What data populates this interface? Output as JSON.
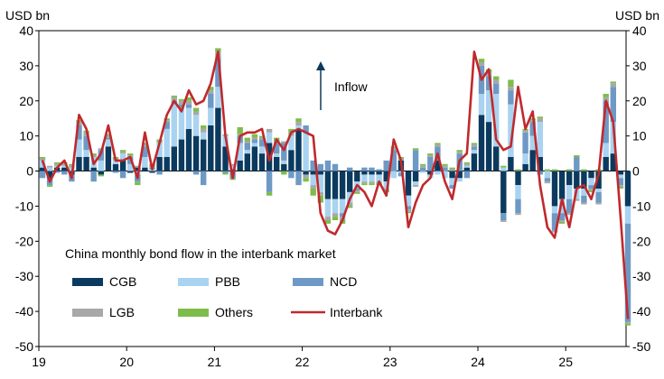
{
  "chart_data": {
    "type": "bar",
    "y_unit_left": "USD bn",
    "y_unit_right": "USD bn",
    "ylim": [
      -50,
      40
    ],
    "y_ticks": [
      40,
      30,
      20,
      10,
      0,
      -10,
      -20,
      -30,
      -40,
      -50
    ],
    "x_ticks": [
      "19",
      "20",
      "21",
      "22",
      "23",
      "24",
      "25"
    ],
    "legend_title": "China monthly bond flow in the interbank market",
    "annotation": "Inflow",
    "legend": [
      {
        "name": "CGB",
        "color": "#0b3a5e",
        "kind": "bar"
      },
      {
        "name": "PBB",
        "color": "#a9d3f0",
        "kind": "bar"
      },
      {
        "name": "NCD",
        "color": "#6f99c5",
        "kind": "bar"
      },
      {
        "name": "LGB",
        "color": "#a8a8a8",
        "kind": "bar"
      },
      {
        "name": "Others",
        "color": "#7ebd4c",
        "kind": "bar"
      },
      {
        "name": "Interbank",
        "color": "#c0292c",
        "kind": "line"
      }
    ],
    "months_per_year": 12,
    "start_year": 2019,
    "series": [
      {
        "name": "CGB",
        "values": [
          1,
          -2,
          1,
          1,
          -1,
          4,
          4,
          1,
          -1,
          7,
          2,
          3,
          -0.5,
          1,
          1,
          -0.5,
          4,
          4,
          7,
          9,
          12,
          10,
          9,
          13,
          18,
          7,
          0.5,
          3,
          5,
          7,
          5,
          8,
          4,
          2,
          6,
          12,
          -1,
          -1,
          -1,
          -8,
          -8,
          -8,
          -6,
          -3,
          -1,
          -1,
          -1,
          -3,
          0,
          3,
          -7,
          -3,
          0,
          -1,
          3,
          0,
          -2,
          -2,
          1,
          5,
          16,
          14,
          7,
          -12,
          4,
          -4,
          2,
          6,
          4,
          0,
          -10,
          -8,
          -4,
          -5,
          -5,
          -2,
          -5,
          4,
          5,
          -1,
          -10
        ]
      },
      {
        "name": "PBB",
        "values": [
          2,
          1,
          0.5,
          0.5,
          1,
          5,
          2,
          3,
          3,
          2,
          1,
          2,
          2,
          -1,
          3,
          0.5,
          4,
          8,
          12,
          9,
          6,
          6,
          2,
          5,
          6,
          3,
          1,
          5,
          1,
          1,
          2,
          3,
          1,
          1,
          4,
          1,
          11,
          -3,
          -5,
          -5,
          -4,
          -4,
          -3,
          -2,
          -2,
          -2,
          -2,
          -2,
          -2,
          -0.5,
          -3,
          -1,
          -0.5,
          -1,
          -1,
          -2,
          -2,
          -1,
          0.5,
          1,
          6,
          9,
          15,
          1,
          15,
          -4,
          3,
          4,
          10,
          -2,
          -2,
          -4,
          -4,
          -3,
          -2,
          -2,
          -1,
          4,
          9,
          -1,
          -5
        ]
      },
      {
        "name": "NCD",
        "values": [
          -2,
          -2,
          -0.5,
          -1,
          -2,
          4,
          4,
          -3,
          3,
          0.5,
          -0.5,
          -2,
          2,
          -2,
          3,
          0.5,
          -1,
          2,
          1,
          1,
          1,
          -1,
          -4,
          4,
          8,
          -0.5,
          -2,
          2,
          2,
          1,
          2,
          -6,
          3,
          5,
          -2,
          -4,
          2,
          3,
          2,
          3,
          2,
          -1,
          1,
          -0.5,
          1,
          1,
          0.5,
          3,
          6,
          -1,
          -1,
          6,
          1,
          4,
          4,
          1,
          -1,
          5,
          -2,
          1,
          8,
          4,
          3,
          -2,
          4,
          -4,
          6,
          4,
          -1,
          -1,
          -5,
          -2,
          -4,
          4,
          -2,
          -1,
          -3,
          12,
          10,
          -2,
          -28
        ]
      },
      {
        "name": "LGB",
        "values": [
          0.5,
          0.5,
          0.5,
          0.5,
          0.5,
          1,
          1,
          0.5,
          0.5,
          0.5,
          0.5,
          0.5,
          0.5,
          0.5,
          0.5,
          0.5,
          0.5,
          0.5,
          1,
          1,
          1,
          1,
          1,
          1,
          2,
          0.5,
          0.5,
          0.5,
          0.5,
          0.5,
          0.5,
          1,
          0.5,
          0.5,
          1,
          1,
          -1,
          -1,
          -1,
          -1,
          -1,
          -1,
          -1,
          -0.5,
          -0.5,
          -0.5,
          -0.5,
          -0.5,
          0.5,
          0.5,
          -0.5,
          -0.5,
          0.5,
          0.5,
          0.5,
          0.5,
          0.5,
          0.5,
          0.5,
          0.5,
          1,
          1,
          1,
          -0.5,
          1,
          -0.5,
          0.5,
          0.5,
          1,
          -0.5,
          -0.5,
          -0.5,
          -0.5,
          -0.5,
          -0.5,
          -0.5,
          -0.5,
          1,
          1,
          -0.5,
          -0.5
        ]
      },
      {
        "name": "Others",
        "values": [
          0.5,
          -0.5,
          0.5,
          0.5,
          0.5,
          0.5,
          0.5,
          0.5,
          -0.5,
          0.5,
          0.5,
          0.5,
          0.5,
          -1,
          0.5,
          0.5,
          0.5,
          0.5,
          0.5,
          0.5,
          1,
          1,
          1,
          1,
          1,
          -0.5,
          -0.5,
          2,
          1,
          1,
          0.5,
          -1,
          1,
          -1,
          1,
          1,
          -1,
          -2,
          -2,
          -1,
          -1,
          -1,
          -0.5,
          -0.5,
          -0.5,
          -0.5,
          -0.5,
          -0.5,
          0.5,
          0.5,
          -0.5,
          0.5,
          0.5,
          0.5,
          0.5,
          0.5,
          0.5,
          0.5,
          0.5,
          0.5,
          1,
          1,
          1,
          0.5,
          2,
          0.5,
          0.5,
          0.5,
          0.5,
          0.5,
          0.5,
          -0.5,
          0.5,
          0.5,
          0.5,
          -0.5,
          0.5,
          1,
          0.5,
          -0.5,
          -0.5
        ]
      },
      {
        "name": "Interbank",
        "values": [
          3,
          -3,
          1,
          3,
          -2,
          16,
          12,
          2,
          5,
          13,
          3,
          3,
          4,
          -2,
          11,
          0.5,
          8,
          16,
          20,
          17,
          23,
          19,
          20,
          25,
          34,
          10,
          -2,
          10,
          11,
          11,
          12,
          3,
          9,
          6,
          11,
          12,
          11,
          10,
          -12,
          -17,
          -18,
          -14,
          -8,
          -4,
          -6,
          -10,
          -3,
          -7,
          9,
          3,
          -16,
          -9,
          -4,
          -2,
          5,
          -3,
          -8,
          3,
          5,
          34,
          26,
          29,
          9,
          6,
          7,
          24,
          12,
          17,
          -4,
          -16,
          -19,
          -8,
          -16,
          -5,
          -4,
          -8,
          -1,
          20,
          14,
          -13,
          -42
        ]
      }
    ]
  }
}
